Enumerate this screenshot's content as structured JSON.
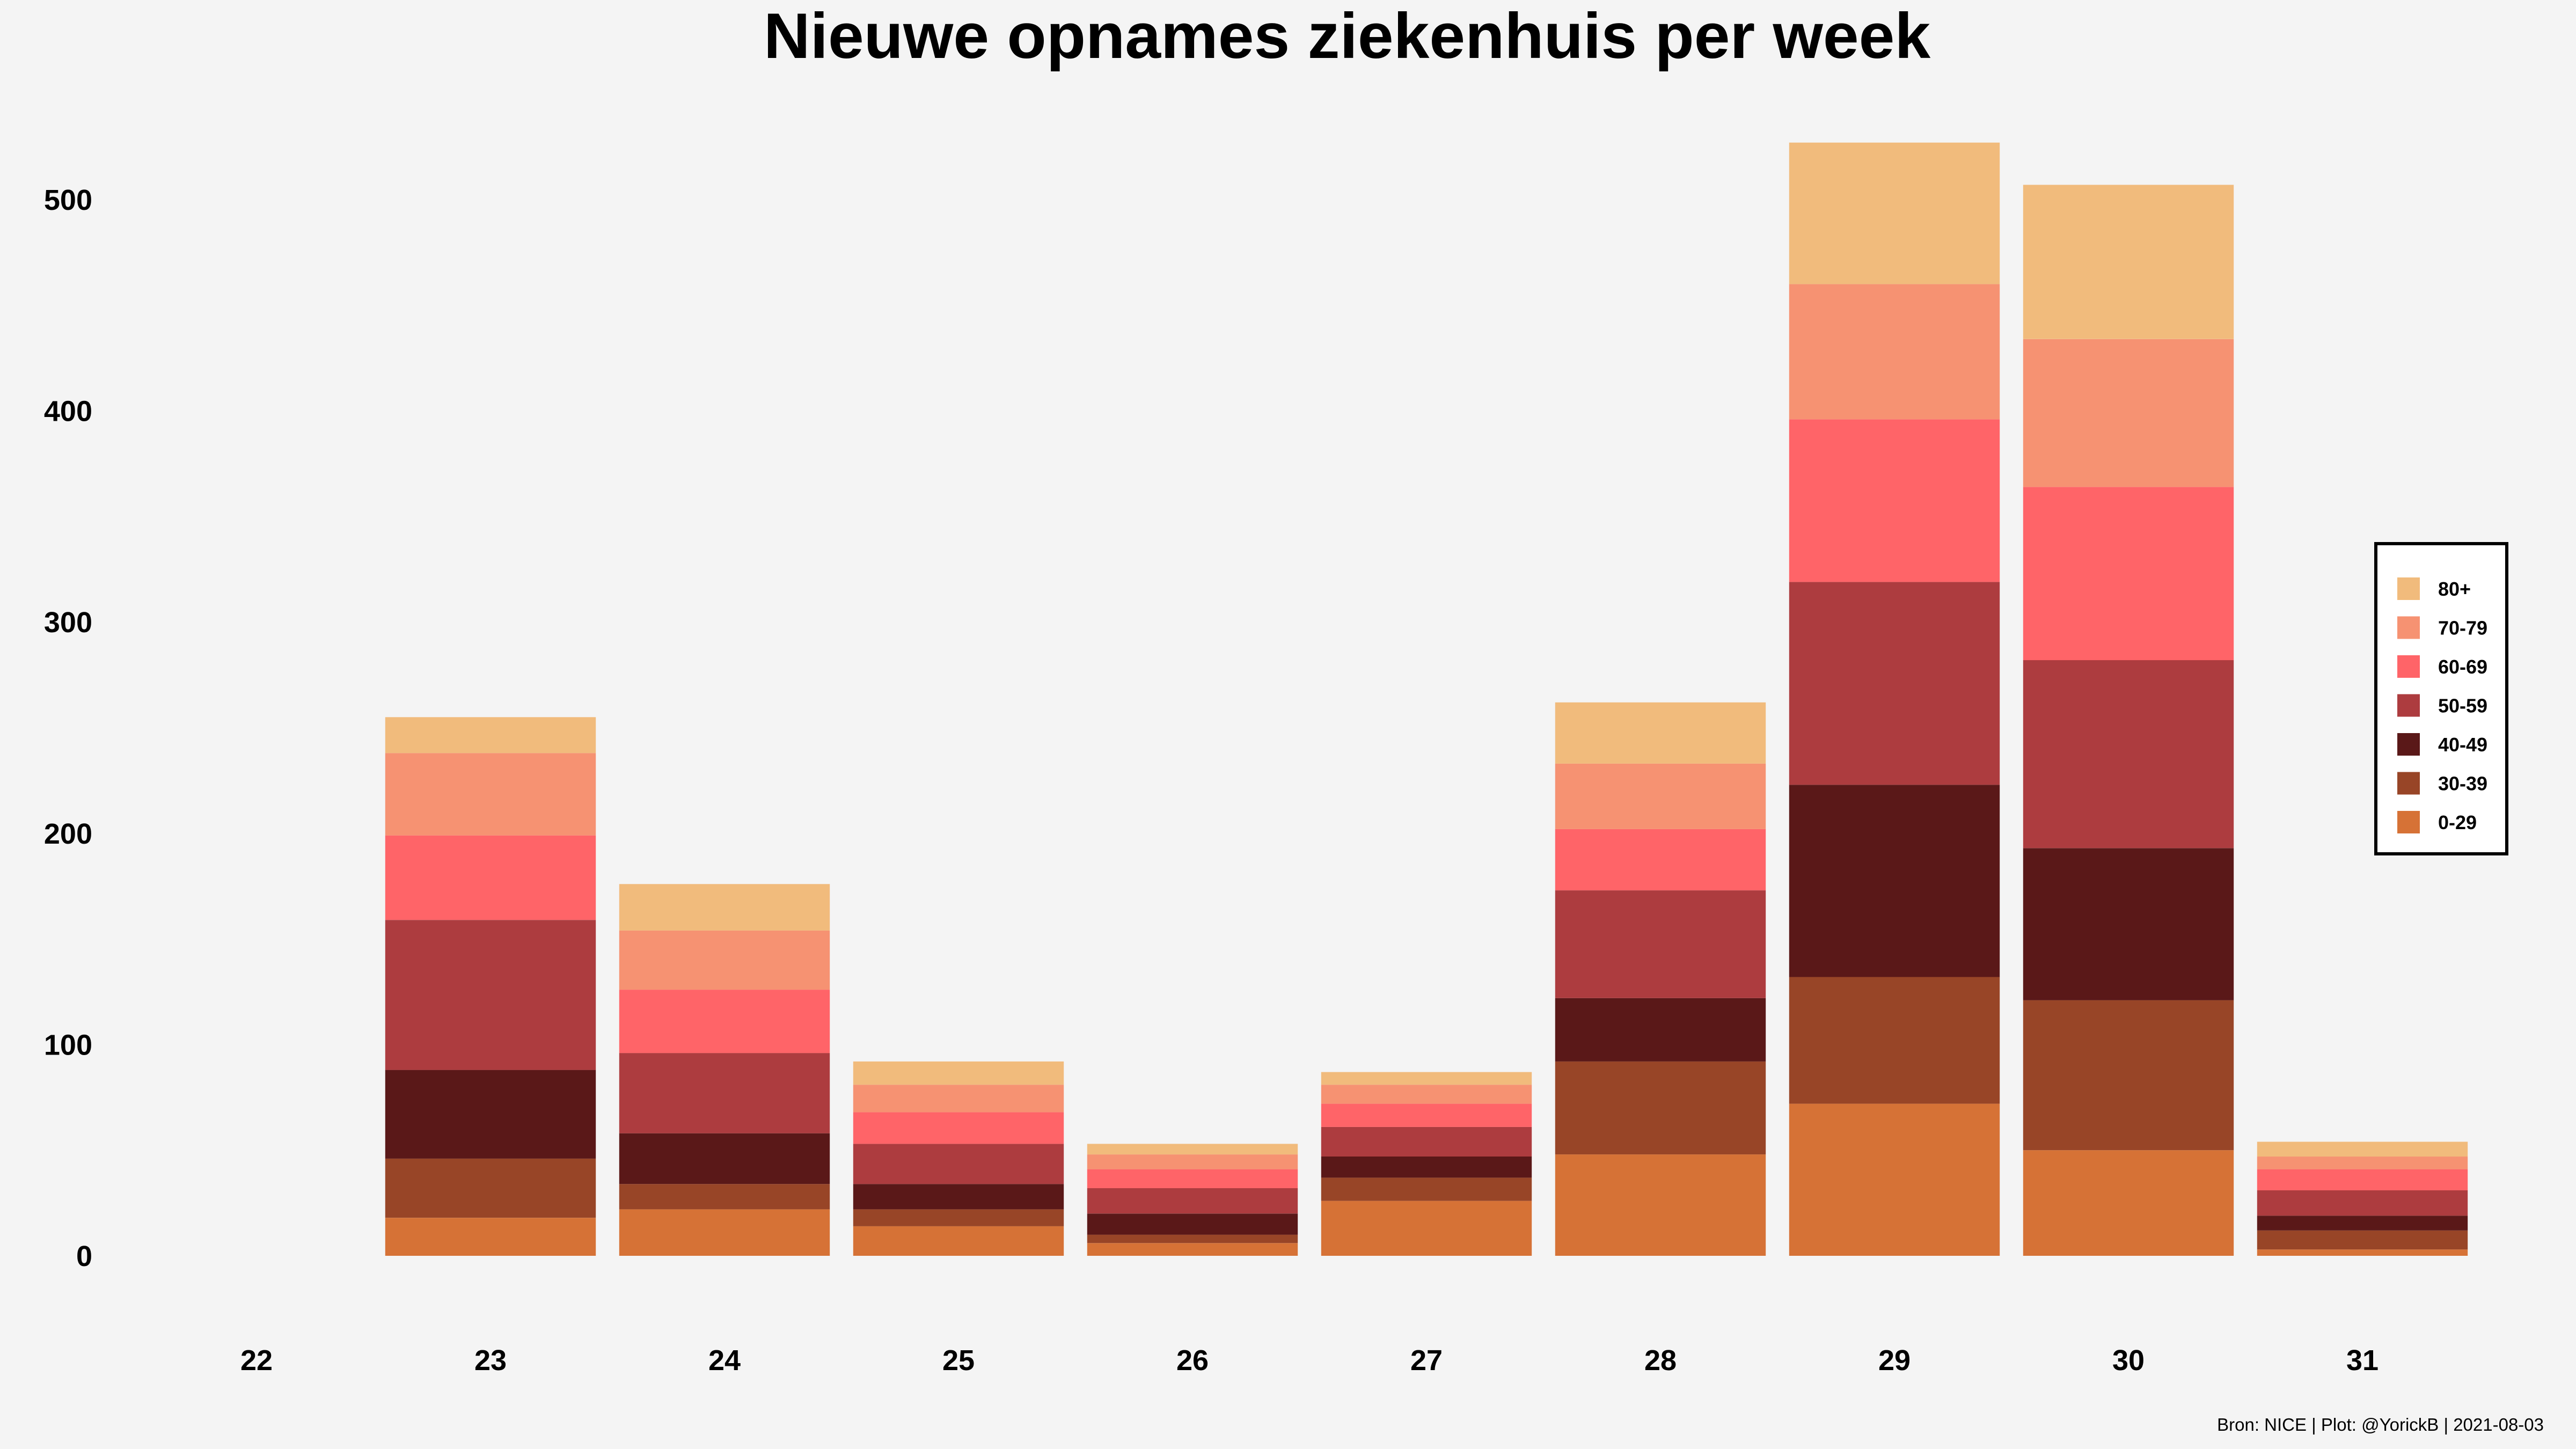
{
  "chart_data": {
    "type": "bar",
    "stacked": true,
    "title": "Nieuwe opnames ziekenhuis per week",
    "xlabel": "",
    "ylabel": "",
    "categories": [
      "22",
      "23",
      "24",
      "25",
      "26",
      "27",
      "28",
      "29",
      "30",
      "31"
    ],
    "y_ticks": [
      "0",
      "100",
      "200",
      "300",
      "400",
      "500"
    ],
    "y_tick_values": [
      0,
      100,
      200,
      300,
      400,
      500
    ],
    "ylim": [
      0,
      545
    ],
    "grid": false,
    "legend_position": "right",
    "series": [
      {
        "name": "0-29",
        "color": "#d67236",
        "values": [
          0,
          18,
          22,
          14,
          6,
          26,
          48,
          72,
          50,
          3
        ]
      },
      {
        "name": "30-39",
        "color": "#984527",
        "values": [
          0,
          28,
          12,
          8,
          4,
          11,
          44,
          60,
          71,
          9
        ]
      },
      {
        "name": "40-49",
        "color": "#5a1818",
        "values": [
          0,
          42,
          24,
          12,
          10,
          10,
          30,
          91,
          72,
          7
        ]
      },
      {
        "name": "50-59",
        "color": "#ad3c3f",
        "values": [
          0,
          71,
          38,
          19,
          12,
          14,
          51,
          96,
          89,
          12
        ]
      },
      {
        "name": "60-69",
        "color": "#ff6468",
        "values": [
          0,
          40,
          30,
          15,
          9,
          11,
          29,
          77,
          82,
          10
        ]
      },
      {
        "name": "70-79",
        "color": "#f69272",
        "values": [
          0,
          39,
          28,
          13,
          7,
          9,
          31,
          64,
          70,
          6
        ]
      },
      {
        "name": "80+",
        "color": "#f1bb7c",
        "values": [
          0,
          17,
          22,
          11,
          5,
          6,
          29,
          67,
          73,
          7
        ]
      }
    ],
    "caption": "Bron: NICE | Plot: @YorickB |  2021-08-03"
  }
}
